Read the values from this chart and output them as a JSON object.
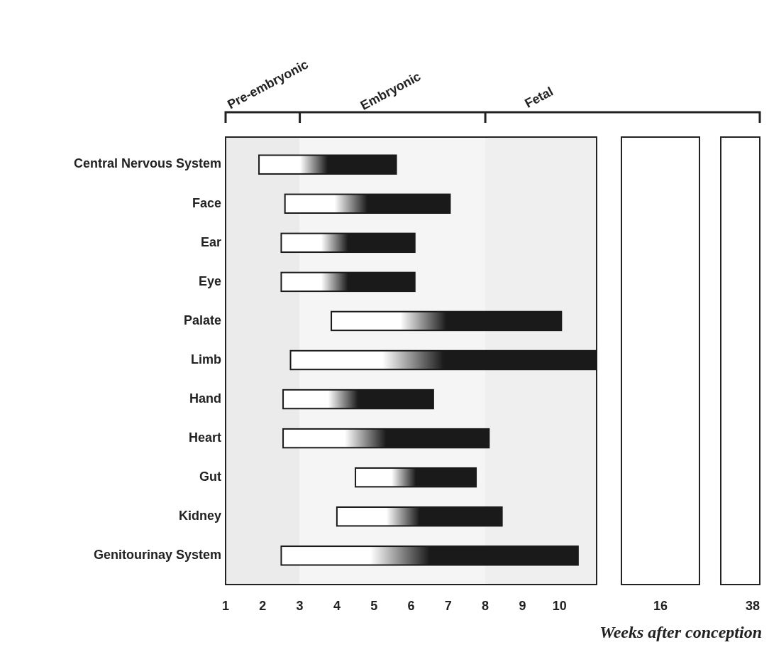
{
  "chart_data": [
    {
      "type": "bar",
      "orientation": "horizontal",
      "xlabel": "Weeks after conception",
      "categories": [
        "Central Nervous System",
        "Face",
        "Ear",
        "Eye",
        "Palate",
        "Limb",
        "Hand",
        "Heart",
        "Gut",
        "Kidney",
        "Genitourinay System"
      ],
      "base": [
        1.9,
        2.6,
        2.5,
        2.5,
        3.85,
        2.75,
        2.55,
        2.55,
        4.5,
        4.0,
        2.5
      ],
      "values": [
        3.7,
        4.45,
        3.6,
        3.6,
        6.2,
        8.25,
        4.05,
        5.55,
        3.25,
        4.45,
        8.0
      ],
      "color": "#1a1a1a",
      "xlim": [
        1,
        11
      ],
      "xticks": [
        1,
        2,
        3,
        4,
        5,
        6,
        7,
        8,
        9,
        10
      ],
      "bands": [
        {
          "axis": "x",
          "from": 1,
          "to": 3,
          "label": "Pre-embryonic"
        },
        {
          "axis": "x",
          "from": 3,
          "to": 8,
          "label": "Embryonic"
        },
        {
          "axis": "x",
          "from": 8,
          "to": 11,
          "label": "Fetal"
        }
      ]
    },
    {
      "type": "other",
      "annotations": [
        "16"
      ]
    },
    {
      "type": "other",
      "annotations": [
        "38"
      ]
    }
  ]
}
